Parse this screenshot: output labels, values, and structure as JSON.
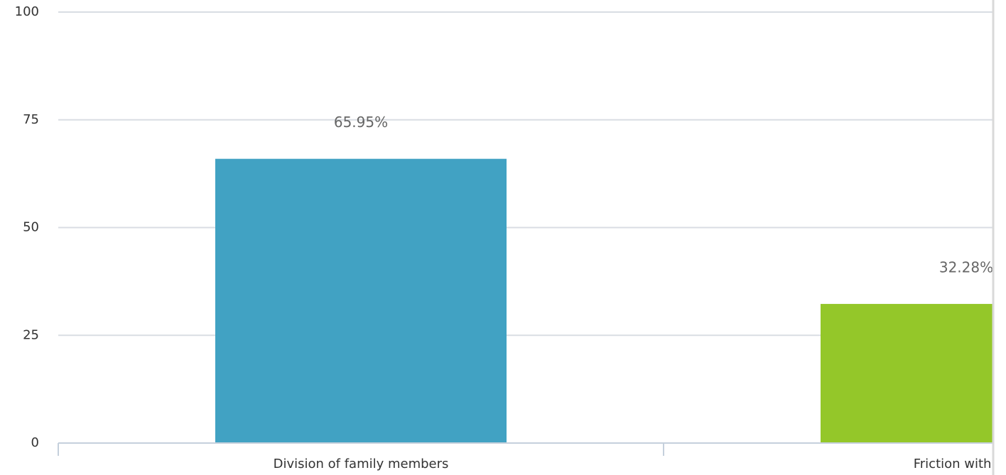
{
  "chart_data": {
    "type": "bar",
    "categories": [
      "Division of family members",
      "Friction with you"
    ],
    "values": [
      65.95,
      32.28
    ],
    "data_labels": [
      "65.95%",
      "32.28%"
    ],
    "bar_colors": [
      "#41a2c3",
      "#94c729"
    ],
    "ylim": [
      0,
      100
    ],
    "yticks": [
      "0",
      "25",
      "50",
      "75",
      "100"
    ],
    "ytick_values": [
      0,
      25,
      50,
      75,
      100
    ],
    "title": "",
    "xlabel": "",
    "ylabel": "",
    "grid": true,
    "legend": "none"
  },
  "colors": {
    "grid": "#d9dde3",
    "axis": "#c5d0dc",
    "text": "#333333",
    "label": "#666666"
  }
}
